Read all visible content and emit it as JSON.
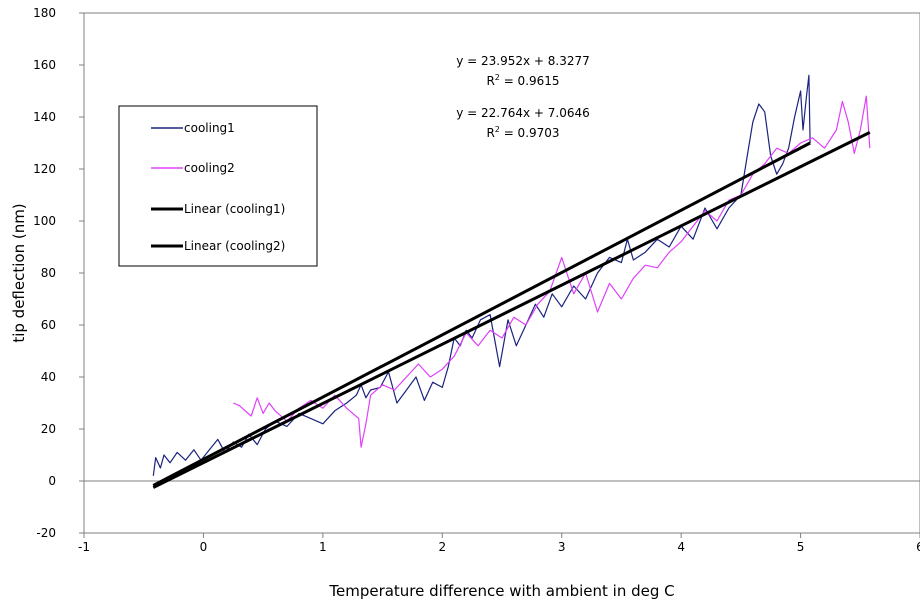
{
  "chart_data": {
    "type": "line",
    "title": "",
    "xlabel": "Temperature difference with ambient in deg C",
    "ylabel": "tip deflection (nm)",
    "xlim": [
      -1,
      6
    ],
    "ylim": [
      -20,
      180
    ],
    "xticks": [
      -1,
      0,
      1,
      2,
      3,
      4,
      5,
      6
    ],
    "yticks": [
      -20,
      0,
      20,
      40,
      60,
      80,
      100,
      120,
      140,
      160,
      180
    ],
    "grid": false,
    "legend_position": "left",
    "series": [
      {
        "name": "cooling1",
        "color": "#1a237e",
        "kind": "data",
        "points": [
          [
            -0.42,
            2
          ],
          [
            -0.4,
            9
          ],
          [
            -0.36,
            5
          ],
          [
            -0.33,
            10
          ],
          [
            -0.28,
            7
          ],
          [
            -0.22,
            11
          ],
          [
            -0.15,
            8
          ],
          [
            -0.08,
            12
          ],
          [
            -0.02,
            8
          ],
          [
            0.05,
            12
          ],
          [
            0.12,
            16
          ],
          [
            0.18,
            11
          ],
          [
            0.25,
            15
          ],
          [
            0.32,
            13
          ],
          [
            0.38,
            18
          ],
          [
            0.45,
            14
          ],
          [
            0.52,
            20
          ],
          [
            0.6,
            23
          ],
          [
            0.7,
            21
          ],
          [
            0.8,
            26
          ],
          [
            0.9,
            24
          ],
          [
            1.0,
            22
          ],
          [
            1.1,
            27
          ],
          [
            1.2,
            30
          ],
          [
            1.28,
            33
          ],
          [
            1.32,
            37
          ],
          [
            1.36,
            32
          ],
          [
            1.4,
            35
          ],
          [
            1.48,
            36
          ],
          [
            1.55,
            42
          ],
          [
            1.62,
            30
          ],
          [
            1.7,
            35
          ],
          [
            1.78,
            40
          ],
          [
            1.85,
            31
          ],
          [
            1.92,
            38
          ],
          [
            2.0,
            36
          ],
          [
            2.05,
            44
          ],
          [
            2.1,
            55
          ],
          [
            2.15,
            52
          ],
          [
            2.2,
            58
          ],
          [
            2.25,
            55
          ],
          [
            2.32,
            62
          ],
          [
            2.4,
            64
          ],
          [
            2.48,
            44
          ],
          [
            2.55,
            62
          ],
          [
            2.62,
            52
          ],
          [
            2.7,
            60
          ],
          [
            2.78,
            68
          ],
          [
            2.85,
            63
          ],
          [
            2.92,
            72
          ],
          [
            3.0,
            67
          ],
          [
            3.1,
            75
          ],
          [
            3.2,
            70
          ],
          [
            3.3,
            80
          ],
          [
            3.4,
            86
          ],
          [
            3.5,
            84
          ],
          [
            3.55,
            93
          ],
          [
            3.6,
            85
          ],
          [
            3.7,
            88
          ],
          [
            3.8,
            93
          ],
          [
            3.9,
            90
          ],
          [
            4.0,
            98
          ],
          [
            4.1,
            93
          ],
          [
            4.2,
            105
          ],
          [
            4.3,
            97
          ],
          [
            4.4,
            105
          ],
          [
            4.5,
            110
          ],
          [
            4.55,
            124
          ],
          [
            4.6,
            138
          ],
          [
            4.65,
            145
          ],
          [
            4.7,
            142
          ],
          [
            4.75,
            125
          ],
          [
            4.8,
            118
          ],
          [
            4.85,
            122
          ],
          [
            4.9,
            128
          ],
          [
            4.95,
            140
          ],
          [
            5.0,
            150
          ],
          [
            5.02,
            135
          ],
          [
            5.05,
            148
          ],
          [
            5.07,
            156
          ],
          [
            5.08,
            130
          ]
        ]
      },
      {
        "name": "cooling2",
        "color": "#e040fb",
        "kind": "data",
        "points": [
          [
            0.25,
            30
          ],
          [
            0.3,
            29
          ],
          [
            0.35,
            27
          ],
          [
            0.4,
            25
          ],
          [
            0.45,
            32
          ],
          [
            0.5,
            26
          ],
          [
            0.55,
            30
          ],
          [
            0.6,
            27
          ],
          [
            0.7,
            23
          ],
          [
            0.8,
            28
          ],
          [
            0.9,
            31
          ],
          [
            1.0,
            28
          ],
          [
            1.1,
            33
          ],
          [
            1.2,
            28
          ],
          [
            1.3,
            24
          ],
          [
            1.32,
            13
          ],
          [
            1.36,
            22
          ],
          [
            1.4,
            33
          ],
          [
            1.5,
            37
          ],
          [
            1.6,
            35
          ],
          [
            1.7,
            40
          ],
          [
            1.8,
            45
          ],
          [
            1.9,
            40
          ],
          [
            2.0,
            43
          ],
          [
            2.1,
            48
          ],
          [
            2.2,
            57
          ],
          [
            2.3,
            52
          ],
          [
            2.4,
            58
          ],
          [
            2.5,
            55
          ],
          [
            2.6,
            63
          ],
          [
            2.7,
            60
          ],
          [
            2.8,
            68
          ],
          [
            2.9,
            73
          ],
          [
            3.0,
            86
          ],
          [
            3.1,
            72
          ],
          [
            3.2,
            80
          ],
          [
            3.3,
            65
          ],
          [
            3.4,
            76
          ],
          [
            3.5,
            70
          ],
          [
            3.6,
            78
          ],
          [
            3.7,
            83
          ],
          [
            3.8,
            82
          ],
          [
            3.9,
            88
          ],
          [
            4.0,
            92
          ],
          [
            4.1,
            98
          ],
          [
            4.2,
            104
          ],
          [
            4.3,
            100
          ],
          [
            4.4,
            108
          ],
          [
            4.5,
            110
          ],
          [
            4.6,
            118
          ],
          [
            4.7,
            122
          ],
          [
            4.8,
            128
          ],
          [
            4.9,
            126
          ],
          [
            5.0,
            130
          ],
          [
            5.1,
            132
          ],
          [
            5.2,
            128
          ],
          [
            5.3,
            135
          ],
          [
            5.35,
            146
          ],
          [
            5.4,
            138
          ],
          [
            5.45,
            126
          ],
          [
            5.5,
            135
          ],
          [
            5.55,
            148
          ],
          [
            5.58,
            128
          ]
        ]
      },
      {
        "name": "Linear (cooling1)",
        "color": "#000000",
        "kind": "trend",
        "slope": 23.952,
        "intercept": 8.3277,
        "x_range": [
          -0.42,
          5.08
        ]
      },
      {
        "name": "Linear (cooling2)",
        "color": "#000000",
        "kind": "trend",
        "slope": 22.764,
        "intercept": 7.0646,
        "x_range": [
          -0.42,
          5.58
        ]
      }
    ],
    "annotations": [
      {
        "equation": "y = 23.952x + 8.3277",
        "r2_label": "R",
        "r2_exp": "2",
        "r2_value": " = 0.9615"
      },
      {
        "equation": "y = 22.764x + 7.0646",
        "r2_label": "R",
        "r2_exp": "2",
        "r2_value": " = 0.9703"
      }
    ]
  }
}
